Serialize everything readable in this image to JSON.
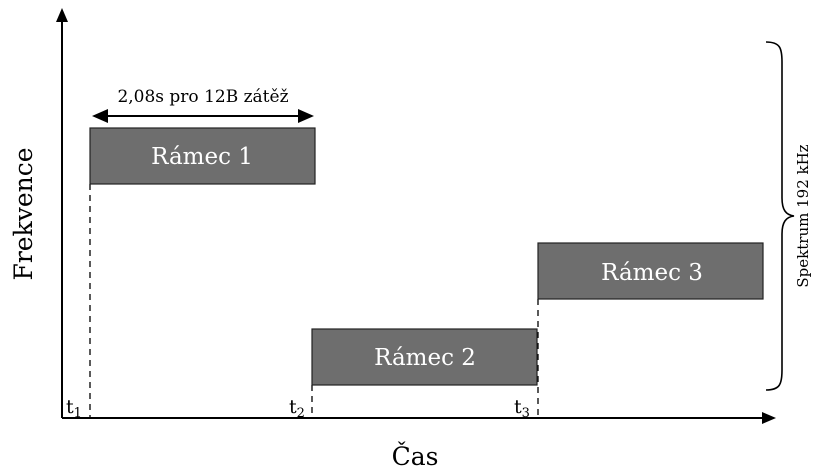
{
  "colors": {
    "frame_fill": "#6e6e6e",
    "frame_stroke": "#222222",
    "line": "#000000"
  },
  "axes": {
    "x_label": "Čas",
    "y_label": "Frekvence"
  },
  "duration_annotation": {
    "label": "2,08s pro 12B zátěž"
  },
  "spectrum": {
    "label": "Spektrum 192 kHz"
  },
  "time_markers": [
    {
      "base": "t",
      "sub": "1"
    },
    {
      "base": "t",
      "sub": "2"
    },
    {
      "base": "t",
      "sub": "3"
    }
  ],
  "frames": [
    {
      "label": "Rámec 1"
    },
    {
      "label": "Rámec 2"
    },
    {
      "label": "Rámec 3"
    }
  ]
}
